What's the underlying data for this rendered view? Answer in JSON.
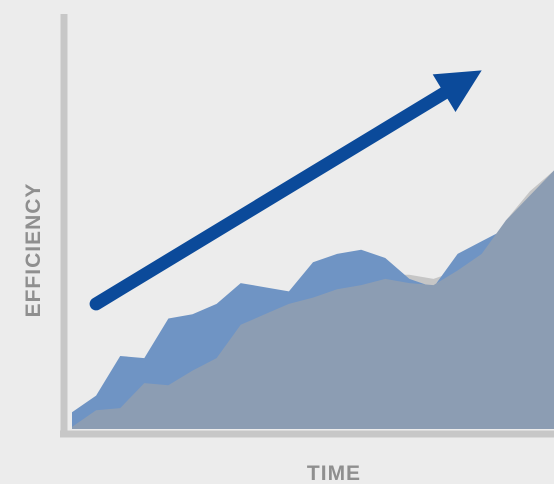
{
  "chart_data": {
    "type": "area",
    "title": "",
    "xlabel": "TIME",
    "ylabel": "EFFICIENCY",
    "grid": false,
    "legend": "none",
    "x": [
      0,
      1,
      2,
      3,
      4,
      5,
      6,
      7,
      8,
      9,
      10,
      11,
      12,
      13,
      14,
      15,
      16,
      17,
      18,
      19,
      20
    ],
    "series": [
      {
        "color": "#c6c6c6",
        "values": [
          0.5,
          4.5,
          5,
          11,
          11.5,
          12,
          15.5,
          16.5,
          24,
          24,
          23,
          30,
          31,
          37,
          37,
          36,
          38,
          37,
          50,
          57,
          62
        ]
      },
      {
        "color": "#6f94c4",
        "values": [
          4,
          8,
          17.5,
          17,
          26.5,
          27.5,
          30,
          35,
          34,
          33,
          40,
          42,
          43,
          41,
          36,
          34,
          42,
          45,
          48,
          53,
          62
        ]
      },
      {
        "color": "#8c9db3",
        "values": [
          0.5,
          4.5,
          5,
          11,
          10.5,
          14,
          17,
          25,
          27.5,
          30,
          31.5,
          33.5,
          34.5,
          36,
          35,
          34.5,
          38,
          42,
          50,
          56,
          62
        ]
      }
    ],
    "trend_arrow": {
      "color": "#0b4a9a",
      "from": [
        1,
        30
      ],
      "to": [
        17,
        86
      ]
    },
    "xlim": [
      0,
      20
    ],
    "ylim": [
      0,
      100
    ]
  }
}
